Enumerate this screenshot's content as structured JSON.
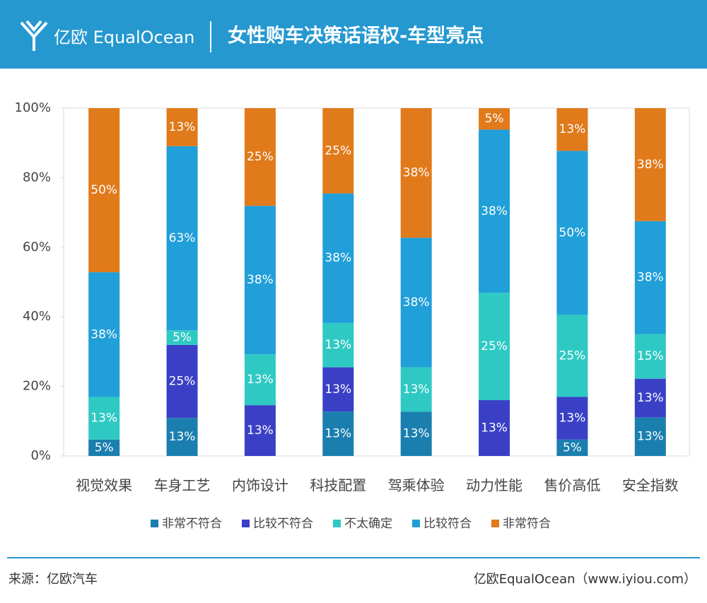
{
  "header": {
    "logo": "亿欧 EqualOcean"
  },
  "chart_data": {
    "type": "bar",
    "stacked": "percent",
    "title": "女性购车决策话语权-车型亮点",
    "categories": [
      "视觉效果",
      "车身工艺",
      "内饰设计",
      "科技配置",
      "驾乘体验",
      "动力性能",
      "售价高低",
      "安全指数"
    ],
    "series": [
      {
        "name": "非常不符合",
        "color": "#1a7fae",
        "values": [
          5,
          13,
          null,
          13,
          13,
          null,
          5,
          13
        ],
        "value_labels": [
          "5%",
          "13%",
          null,
          "13%",
          "13%",
          null,
          "5%",
          "13%"
        ]
      },
      {
        "name": "比较不符合",
        "color": "#3a40c6",
        "values": [
          null,
          25,
          13,
          13,
          null,
          13,
          13,
          13
        ],
        "value_labels": [
          null,
          "25%",
          "13%",
          "13%",
          null,
          "13%",
          "13%",
          "13%"
        ]
      },
      {
        "name": "不太确定",
        "color": "#2fc9c4",
        "values": [
          13,
          5,
          13,
          13,
          13,
          25,
          25,
          15
        ],
        "value_labels": [
          "13%",
          "5%",
          "13%",
          "13%",
          "13%",
          "25%",
          "25%",
          "15%"
        ]
      },
      {
        "name": "比较符合",
        "color": "#209fd8",
        "values": [
          38,
          63,
          38,
          38,
          38,
          38,
          50,
          38
        ],
        "value_labels": [
          "38%",
          "63%",
          "38%",
          "38%",
          "38%",
          "38%",
          "50%",
          "38%"
        ]
      },
      {
        "name": "非常符合",
        "color": "#e07a1b",
        "values": [
          50,
          13,
          25,
          25,
          38,
          5,
          13,
          38
        ],
        "value_labels": [
          "50%",
          "13%",
          "25%",
          "25%",
          "38%",
          "5%",
          "13%",
          "38%"
        ]
      }
    ],
    "ylim": [
      0,
      100
    ],
    "yticks": [
      {
        "value": 0,
        "label": "0%"
      },
      {
        "value": 20,
        "label": "20%"
      },
      {
        "value": 40,
        "label": "40%"
      },
      {
        "value": 60,
        "label": "60%"
      },
      {
        "value": 80,
        "label": "80%"
      },
      {
        "value": 100,
        "label": "100%"
      }
    ],
    "legend": "bottom"
  },
  "footer": {
    "source": "来源：亿欧汽车",
    "credit": "亿欧EqualOcean（www.iyiou.com）"
  }
}
